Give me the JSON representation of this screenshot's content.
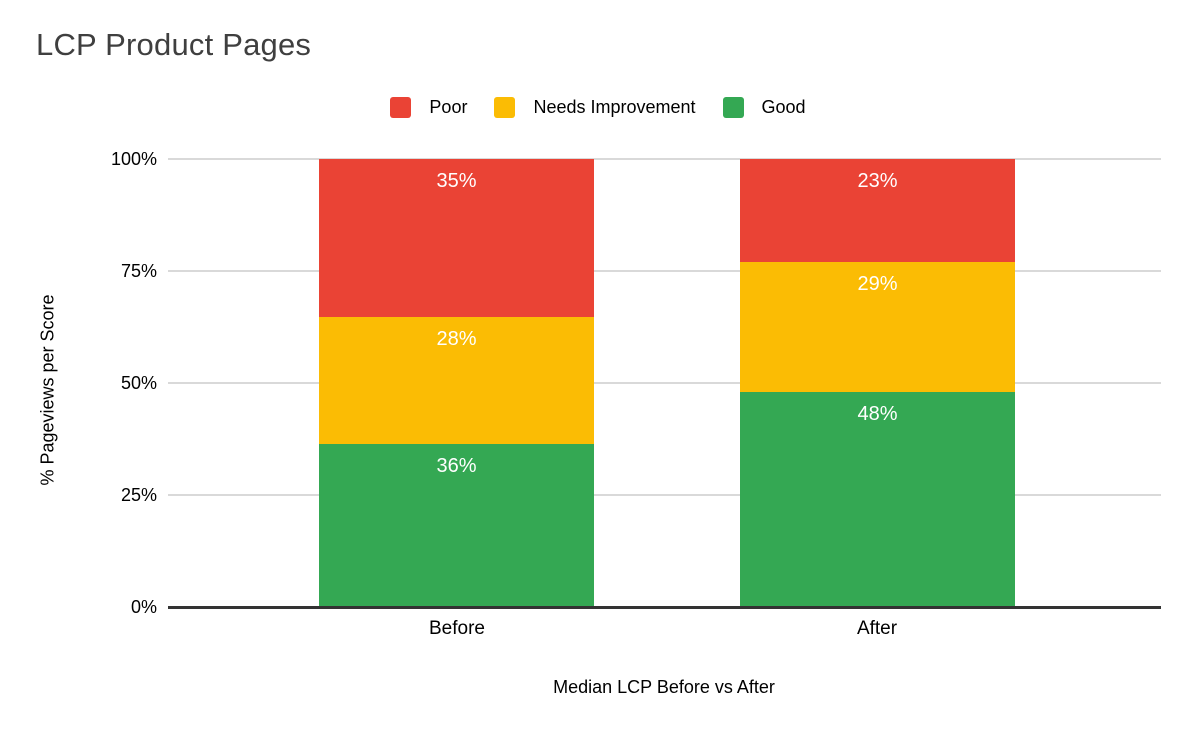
{
  "title": "LCP Product Pages",
  "legend": {
    "items": [
      {
        "label": "Poor",
        "color": "#EA4335"
      },
      {
        "label": "Needs Improvement",
        "color": "#FBBC04"
      },
      {
        "label": "Good",
        "color": "#34A853"
      }
    ]
  },
  "chart_data": {
    "type": "bar",
    "variant": "100-percent-stacked-column",
    "title": "LCP Product Pages",
    "xlabel": "Median LCP Before vs After",
    "ylabel": "% Pageviews per Score",
    "categories": [
      "Before",
      "After"
    ],
    "series": [
      {
        "name": "Good",
        "color": "#34A853",
        "values": [
          36,
          48
        ]
      },
      {
        "name": "Needs Improvement",
        "color": "#FBBC04",
        "values": [
          28,
          29
        ]
      },
      {
        "name": "Poor",
        "color": "#EA4335",
        "values": [
          35,
          23
        ]
      }
    ],
    "data_labels": {
      "before": {
        "good": "36%",
        "needs_improvement": "28%",
        "poor": "35%"
      },
      "after": {
        "good": "48%",
        "needs_improvement": "29%",
        "poor": "23%"
      }
    },
    "y_ticks": [
      "100%",
      "75%",
      "50%",
      "25%",
      "0%"
    ],
    "ylim": [
      0,
      100
    ],
    "grid": true,
    "legend_position": "top",
    "colors": {
      "grid_line": "#d9d9d9",
      "axis_line": "#333333",
      "title_text": "#3f3f3f",
      "axis_text": "#000000",
      "data_label_text": "#ffffff",
      "background": "#ffffff"
    }
  }
}
